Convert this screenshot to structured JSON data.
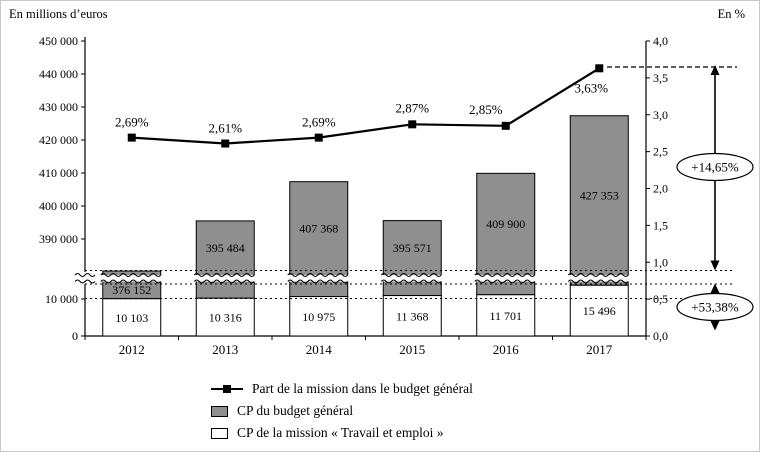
{
  "axes": {
    "left_title": "En millions d’euros",
    "right_title": "En %",
    "left_ticks": [
      {
        "label": "450 000",
        "value": 450000
      },
      {
        "label": "440 000",
        "value": 440000
      },
      {
        "label": "430 000",
        "value": 430000
      },
      {
        "label": "420 000",
        "value": 420000
      },
      {
        "label": "410 000",
        "value": 410000
      },
      {
        "label": "400 000",
        "value": 400000
      },
      {
        "label": "390 000",
        "value": 390000
      },
      {
        "label": "10 000",
        "value": 10000
      },
      {
        "label": "0",
        "value": 0
      }
    ],
    "right_ticks": [
      {
        "label": "4,0",
        "value": 4.0
      },
      {
        "label": "3,5",
        "value": 3.5
      },
      {
        "label": "3,0",
        "value": 3.0
      },
      {
        "label": "2,5",
        "value": 2.5
      },
      {
        "label": "2,0",
        "value": 2.0
      },
      {
        "label": "1,5",
        "value": 1.5
      },
      {
        "label": "1,0",
        "value": 1.0
      },
      {
        "label": "0,5",
        "value": 0.5
      },
      {
        "label": "0,0",
        "value": 0.0
      }
    ]
  },
  "chart_data": {
    "type": "bar",
    "subtype": "stacked-bars-with-line-and-broken-axis",
    "categories": [
      "2012",
      "2013",
      "2014",
      "2015",
      "2016",
      "2017"
    ],
    "series": [
      {
        "name": "CP du budget général",
        "type": "bar",
        "color": "#8f8f8f",
        "values": [
          376152,
          395484,
          407368,
          395571,
          409900,
          427353
        ],
        "labels": [
          "376 152",
          "395 484",
          "407 368",
          "395 571",
          "409 900",
          "427 353"
        ]
      },
      {
        "name": "CP de la mission « Travail et emploi »",
        "type": "bar",
        "color": "#ffffff",
        "values": [
          10103,
          10316,
          10975,
          11368,
          11701,
          15496
        ],
        "labels": [
          "10 103",
          "10 316",
          "10 975",
          "11 368",
          "11 701",
          "15 496"
        ]
      },
      {
        "name": "Part de la mission dans le budget général",
        "type": "line",
        "color": "#000000",
        "values": [
          2.69,
          2.61,
          2.69,
          2.87,
          2.85,
          3.63
        ],
        "labels": [
          "2,69%",
          "2,61%",
          "2,69%",
          "2,87%",
          "2,85%",
          "3,63%"
        ]
      }
    ],
    "left_axis_unit": "En millions d’euros",
    "right_axis_unit": "En %",
    "right_axis_range": [
      0,
      4
    ],
    "axis_break": true
  },
  "annotations": {
    "total_growth": "+14,65%",
    "mission_growth": "+53,38%"
  }
}
